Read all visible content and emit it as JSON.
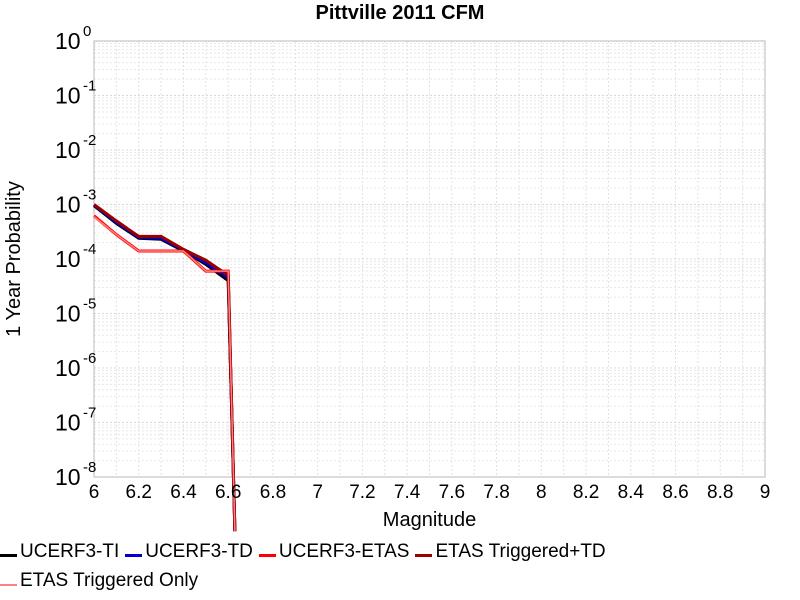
{
  "chart_data": {
    "type": "line",
    "title": "Pittville 2011 CFM",
    "xlabel": "Magnitude",
    "ylabel": "1 Year Probability",
    "y_scale": "log",
    "xlim": [
      6,
      9
    ],
    "ylim": [
      1e-08,
      1
    ],
    "x_ticks": [
      6,
      6.2,
      6.4,
      6.6,
      6.8,
      7,
      7.2,
      7.4,
      7.6,
      7.8,
      8,
      8.2,
      8.4,
      8.6,
      8.8,
      9
    ],
    "x_tick_labels": [
      "6",
      "6.2",
      "6.4",
      "6.6",
      "6.8",
      "7",
      "7.2",
      "7.4",
      "7.6",
      "7.8",
      "8",
      "8.2",
      "8.4",
      "8.6",
      "8.8",
      "9"
    ],
    "y_ticks": [
      {
        "base": "10",
        "exp": "0",
        "value": 1
      },
      {
        "base": "10",
        "exp": "-1",
        "value": 0.1
      },
      {
        "base": "10",
        "exp": "-2",
        "value": 0.01
      },
      {
        "base": "10",
        "exp": "-3",
        "value": 0.001
      },
      {
        "base": "10",
        "exp": "-4",
        "value": 0.0001
      },
      {
        "base": "10",
        "exp": "-5",
        "value": 1e-05
      },
      {
        "base": "10",
        "exp": "-6",
        "value": 1e-06
      },
      {
        "base": "10",
        "exp": "-7",
        "value": 1e-07
      },
      {
        "base": "10",
        "exp": "-8",
        "value": 1e-08
      }
    ],
    "grid": true,
    "legend_position": "bottom",
    "series": [
      {
        "name": "UCERF3-TI",
        "color": "#000000",
        "width": 3,
        "x": [
          6.0,
          6.1,
          6.2,
          6.3,
          6.4,
          6.5,
          6.6,
          6.63
        ],
        "y": [
          0.00095,
          0.00045,
          0.00024,
          0.00023,
          0.00014,
          8e-05,
          4e-05,
          1e-09
        ]
      },
      {
        "name": "UCERF3-TD",
        "color": "#0000cc",
        "width": 3,
        "x": [
          6.0,
          6.1,
          6.2,
          6.3,
          6.4,
          6.5,
          6.6,
          6.63
        ],
        "y": [
          0.00098,
          0.00047,
          0.00025,
          0.00024,
          0.000145,
          8.5e-05,
          4.5e-05,
          1e-09
        ]
      },
      {
        "name": "UCERF3-ETAS",
        "color": "#ff0000",
        "width": 3,
        "x": [
          6.0,
          6.1,
          6.2,
          6.3,
          6.4,
          6.5,
          6.6,
          6.63
        ],
        "y": [
          0.00062,
          0.00028,
          0.00014,
          0.00014,
          0.00014,
          6e-05,
          6e-05,
          1e-09
        ]
      },
      {
        "name": "ETAS Triggered+TD",
        "color": "#990000",
        "width": 3,
        "x": [
          6.0,
          6.1,
          6.2,
          6.3,
          6.4,
          6.5,
          6.6,
          6.63
        ],
        "y": [
          0.001,
          0.0005,
          0.00026,
          0.00026,
          0.00015,
          9.5e-05,
          5e-05,
          1e-09
        ]
      },
      {
        "name": "ETAS Triggered Only",
        "color": "#ff8080",
        "width": 1.5,
        "x": [
          6.0,
          6.1,
          6.2,
          6.3,
          6.4,
          6.5,
          6.6,
          6.63
        ],
        "y": [
          0.0006,
          0.00028,
          0.00014,
          0.00014,
          0.00014,
          6e-05,
          6e-05,
          1e-09
        ]
      }
    ]
  }
}
